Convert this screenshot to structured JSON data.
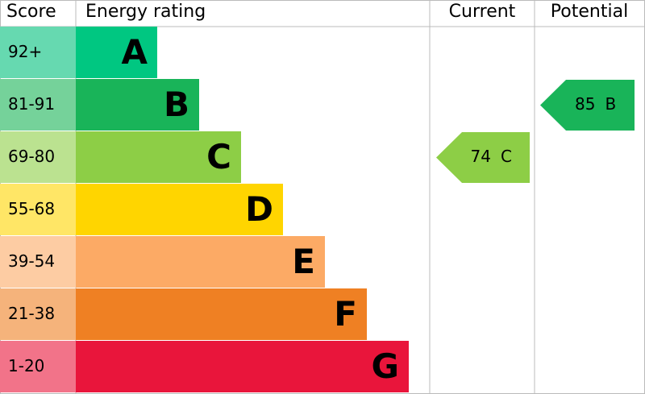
{
  "header": {
    "score": "Score",
    "rating": "Energy rating",
    "current": "Current",
    "potential": "Potential"
  },
  "bands": [
    {
      "score": "92+",
      "letter": "A",
      "color": "#00c781",
      "score_color": "#66d9b0"
    },
    {
      "score": "81-91",
      "letter": "B",
      "color": "#19b459",
      "score_color": "#75d29a"
    },
    {
      "score": "69-80",
      "letter": "C",
      "color": "#8dce46",
      "score_color": "#bbe290"
    },
    {
      "score": "55-68",
      "letter": "D",
      "color": "#ffd500",
      "score_color": "#ffe666"
    },
    {
      "score": "39-54",
      "letter": "E",
      "color": "#fcaa65",
      "score_color": "#fdcca3"
    },
    {
      "score": "21-38",
      "letter": "F",
      "color": "#ef8023",
      "score_color": "#f5b37b"
    },
    {
      "score": "1-20",
      "letter": "G",
      "color": "#e9153b",
      "score_color": "#f27389"
    }
  ],
  "current": {
    "value": 74,
    "letter": "C"
  },
  "potential": {
    "value": 85,
    "letter": "B"
  }
}
